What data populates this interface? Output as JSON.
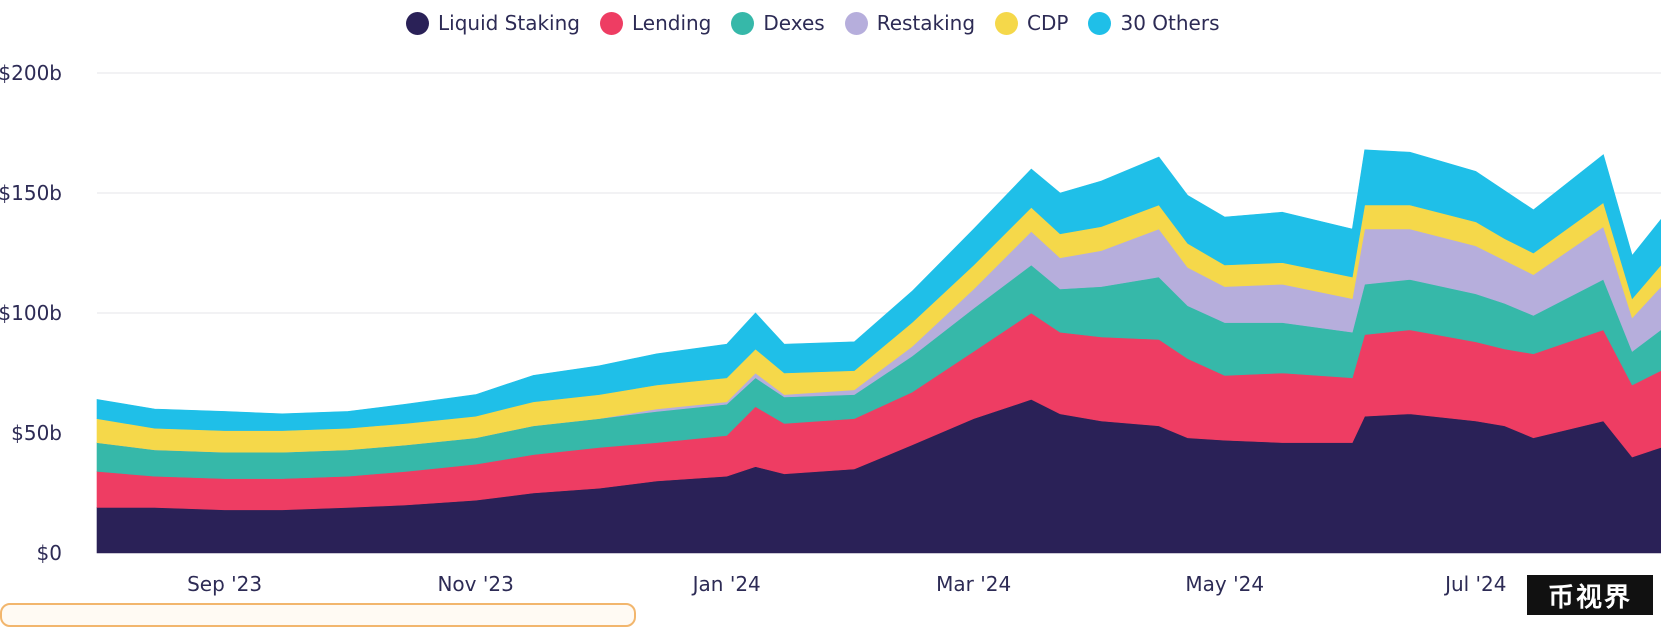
{
  "chart_data": {
    "type": "area",
    "stacked": true,
    "x": [
      "2023-08-01",
      "2023-08-15",
      "2023-09-01",
      "2023-09-15",
      "2023-10-01",
      "2023-10-15",
      "2023-11-01",
      "2023-11-15",
      "2023-12-01",
      "2023-12-15",
      "2024-01-01",
      "2024-01-08",
      "2024-01-15",
      "2024-02-01",
      "2024-02-15",
      "2024-03-01",
      "2024-03-15",
      "2024-03-22",
      "2024-04-01",
      "2024-04-15",
      "2024-04-22",
      "2024-05-01",
      "2024-05-15",
      "2024-06-01",
      "2024-06-04",
      "2024-06-15",
      "2024-07-01",
      "2024-07-08",
      "2024-07-15",
      "2024-08-01",
      "2024-08-08",
      "2024-08-15"
    ],
    "series": [
      {
        "name": "Liquid Staking",
        "color": "#2a2157",
        "values": [
          19,
          19,
          18,
          18,
          19,
          20,
          22,
          25,
          27,
          30,
          32,
          36,
          33,
          35,
          45,
          56,
          64,
          58,
          55,
          53,
          48,
          47,
          46,
          46,
          57,
          58,
          55,
          53,
          48,
          55,
          40,
          44
        ]
      },
      {
        "name": "Lending",
        "color": "#ee3d63",
        "values": [
          15,
          13,
          13,
          13,
          13,
          14,
          15,
          16,
          17,
          16,
          17,
          25,
          21,
          21,
          22,
          28,
          36,
          34,
          35,
          36,
          33,
          27,
          29,
          27,
          34,
          35,
          33,
          32,
          35,
          38,
          30,
          32
        ]
      },
      {
        "name": "Dexes",
        "color": "#36b8a9",
        "values": [
          12,
          11,
          11,
          11,
          11,
          11,
          11,
          12,
          12,
          13,
          13,
          12,
          11,
          10,
          15,
          18,
          20,
          18,
          21,
          26,
          22,
          22,
          21,
          19,
          21,
          21,
          20,
          19,
          16,
          21,
          14,
          17
        ]
      },
      {
        "name": "Restaking",
        "color": "#b6aedc",
        "values": [
          0,
          0,
          0,
          0,
          0,
          0,
          0,
          0,
          0,
          1,
          1,
          2,
          1,
          2,
          4,
          8,
          14,
          13,
          15,
          20,
          16,
          15,
          16,
          14,
          23,
          21,
          20,
          18,
          17,
          22,
          14,
          18
        ]
      },
      {
        "name": "CDP",
        "color": "#f5d84a",
        "values": [
          10,
          9,
          9,
          9,
          9,
          9,
          9,
          10,
          10,
          10,
          10,
          10,
          9,
          8,
          10,
          10,
          10,
          10,
          10,
          10,
          10,
          9,
          9,
          9,
          10,
          10,
          10,
          9,
          9,
          10,
          8,
          9
        ]
      },
      {
        "name": "30 Others",
        "color": "#1fbfe8",
        "values": [
          8,
          8,
          8,
          7,
          7,
          8,
          9,
          11,
          12,
          13,
          14,
          15,
          12,
          12,
          13,
          15,
          16,
          17,
          19,
          20,
          20,
          20,
          21,
          20,
          23,
          22,
          21,
          20,
          18,
          20,
          18,
          19
        ]
      }
    ],
    "yticks": [
      "$0",
      "$50b",
      "$100b",
      "$150b",
      "$200b"
    ],
    "ytick_values": [
      0,
      50,
      100,
      150,
      200
    ],
    "ylim": [
      0,
      200
    ],
    "xticks": [
      "Sep '23",
      "Nov '23",
      "Jan '24",
      "Mar '24",
      "May '24",
      "Jul '24"
    ],
    "xtick_values": [
      "2023-09-01",
      "2023-11-01",
      "2024-01-01",
      "2024-03-01",
      "2024-05-01",
      "2024-07-01"
    ],
    "xlim": [
      "2023-08-01",
      "2024-08-15"
    ],
    "legend_position": "top-center",
    "grid": true
  },
  "legend": [
    {
      "label": "Liquid Staking",
      "color": "#2a2157"
    },
    {
      "label": "Lending",
      "color": "#ee3d63"
    },
    {
      "label": "Dexes",
      "color": "#36b8a9"
    },
    {
      "label": "Restaking",
      "color": "#b6aedc"
    },
    {
      "label": "CDP",
      "color": "#f5d84a"
    },
    {
      "label": "30 Others",
      "color": "#1fbfe8"
    }
  ],
  "watermark": "币视界"
}
